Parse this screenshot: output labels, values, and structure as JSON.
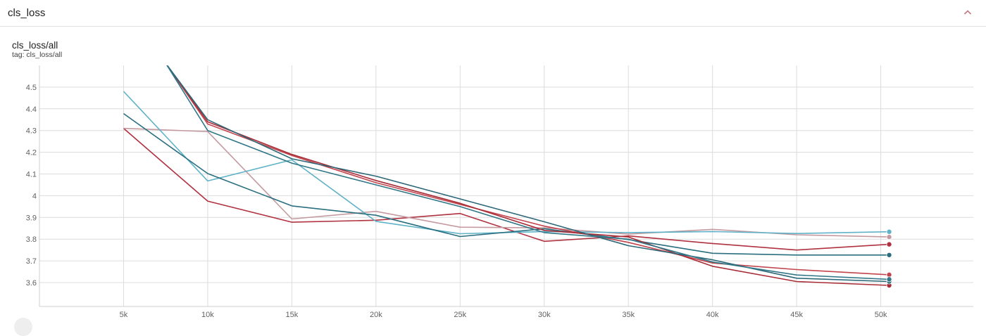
{
  "section": {
    "title": "cls_loss",
    "collapse_icon": "chevron-up-icon"
  },
  "card": {
    "title": "cls_loss/all",
    "tag": "tag: cls_loss/all"
  },
  "chart_data": {
    "type": "line",
    "title": "cls_loss/all",
    "xlabel": "",
    "ylabel": "",
    "xlim": [
      0,
      55500
    ],
    "ylim": [
      3.49,
      4.6
    ],
    "x_ticks": [
      5000,
      10000,
      15000,
      20000,
      25000,
      30000,
      35000,
      40000,
      45000,
      50000
    ],
    "x_tick_labels": [
      "5k",
      "10k",
      "15k",
      "20k",
      "25k",
      "30k",
      "35k",
      "40k",
      "45k",
      "50k"
    ],
    "y_ticks": [
      3.6,
      3.7,
      3.8,
      3.9,
      4.0,
      4.1,
      4.2,
      4.3,
      4.4,
      4.5
    ],
    "y_tick_labels": [
      "3.6",
      "3.7",
      "3.8",
      "3.9",
      "4",
      "4.1",
      "4.2",
      "4.3",
      "4.4",
      "4.5"
    ],
    "grid": true,
    "legend": "none",
    "series": [
      {
        "color": "#b0313f",
        "x": [
          5000,
          10000,
          15000,
          20000,
          25000,
          30000,
          35000,
          40000,
          45000,
          50500
        ],
        "y": [
          4.31,
          3.975,
          3.878,
          3.887,
          3.918,
          3.79,
          3.815,
          3.78,
          3.75,
          3.776
        ]
      },
      {
        "color": "#c49aa0",
        "x": [
          5000,
          10000,
          15000,
          20000,
          25000,
          30000,
          35000,
          40000,
          45000,
          50500
        ],
        "y": [
          4.31,
          4.295,
          3.893,
          3.928,
          3.855,
          3.852,
          3.823,
          3.845,
          3.82,
          3.81
        ]
      },
      {
        "color": "#5fb2c7",
        "x": [
          5000,
          10000,
          15000,
          20000,
          25000,
          30000,
          35000,
          40000,
          45000,
          50500
        ],
        "y": [
          4.48,
          4.068,
          4.165,
          3.882,
          3.825,
          3.835,
          3.83,
          3.835,
          3.826,
          3.834
        ]
      },
      {
        "color": "#2a6f7f",
        "x": [
          5000,
          10000,
          15000,
          20000,
          25000,
          30000,
          35000,
          40000,
          45000,
          50500
        ],
        "y": [
          4.378,
          4.102,
          3.953,
          3.91,
          3.812,
          3.848,
          3.798,
          3.735,
          3.727,
          3.727
        ]
      },
      {
        "color": "#c2454e",
        "x": [
          7500,
          10000,
          15000,
          20000,
          25000,
          30000,
          35000,
          40000,
          45000,
          50500
        ],
        "y": [
          4.61,
          4.33,
          4.185,
          4.06,
          3.96,
          3.86,
          3.785,
          3.69,
          3.66,
          3.636
        ]
      },
      {
        "color": "#a82c36",
        "x": [
          7500,
          10000,
          15000,
          20000,
          25000,
          30000,
          35000,
          40000,
          45000,
          50500
        ],
        "y": [
          4.61,
          4.34,
          4.19,
          4.07,
          3.965,
          3.84,
          3.81,
          3.675,
          3.605,
          3.587
        ]
      },
      {
        "color": "#2c6878",
        "x": [
          7500,
          10000,
          15000,
          20000,
          25000,
          30000,
          35000,
          40000,
          45000,
          50500
        ],
        "y": [
          4.61,
          4.35,
          4.17,
          4.09,
          3.985,
          3.88,
          3.77,
          3.705,
          3.62,
          3.605
        ]
      },
      {
        "color": "#317787",
        "x": [
          7500,
          10000,
          15000,
          20000,
          25000,
          30000,
          35000,
          40000,
          45000,
          50500
        ],
        "y": [
          4.61,
          4.3,
          4.15,
          4.05,
          3.95,
          3.83,
          3.8,
          3.695,
          3.635,
          3.615
        ]
      }
    ]
  }
}
